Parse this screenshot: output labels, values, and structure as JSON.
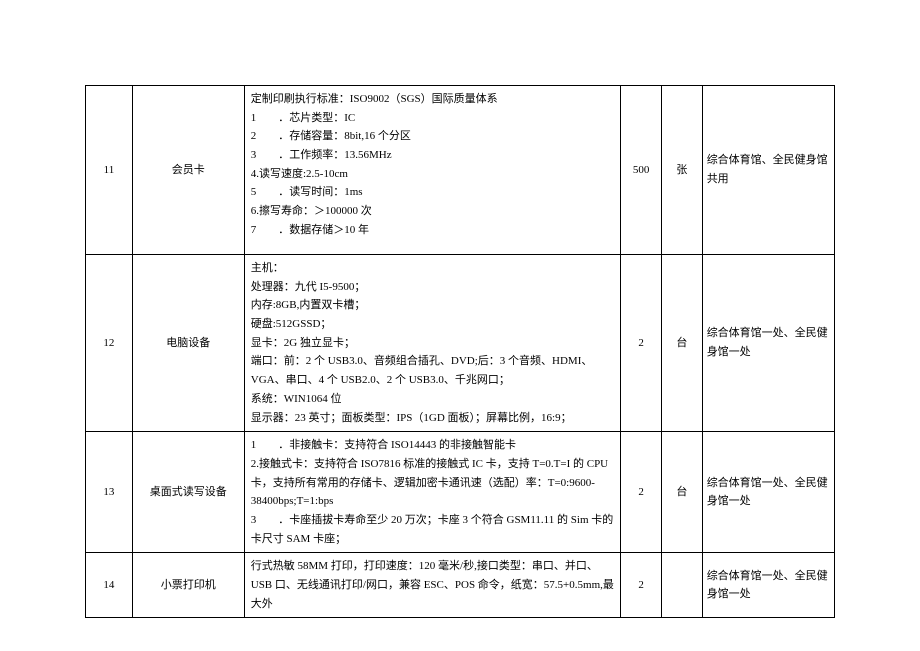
{
  "table": {
    "rows": [
      {
        "idx": "11",
        "name": "会员卡",
        "spec": "定制印刷执行标准：ISO9002（SGS）国际质量体系\n1　　．芯片类型：IC\n2　　．存储容量：8bit,16 个分区\n3　　．工作频率：13.56MHz\n4.读写速度:2.5-10cm\n5　　．读写时间：1ms\n6.擦写寿命：＞100000 次\n7　　．数据存储＞10 年",
        "qty": "500",
        "unit": "张",
        "note": "综合体育馆、全民健身馆共用"
      },
      {
        "idx": "12",
        "name": "电脑设备",
        "spec": "主机：\n处理器：九代 I5-9500；\n内存:8GB,内置双卡槽；\n硬盘:512GSSD；\n显卡：2G 独立显卡；\n端口：前：2 个 USB3.0、音频组合插孔、DVD;后：3 个音频、HDMI、VGA、串口、4 个 USB2.0、2 个 USB3.0、千兆网口；\n系统：WIN1064 位\n显示器：23 英寸；面板类型：IPS（1GD 面板）；屏幕比例，16:9；",
        "qty": "2",
        "unit": "台",
        "note": "综合体育馆一处、全民健身馆一处"
      },
      {
        "idx": "13",
        "name": "桌面式读写设备",
        "spec": "1　　．非接触卡：支持符合 ISO14443 的非接触智能卡\n2.接触式卡：支持符合 ISO7816 标准的接触式 IC 卡，支持 T=0.T=I 的 CPU 卡，支持所有常用的存储卡、逻辑加密卡通讯速（选配）率：T=0:9600-38400bps;T=1:bps\n3　　．卡座插拔卡寿命至少 20 万次；卡座 3 个符合 GSM11.11 的 Sim 卡的卡尺寸 SAM 卡座；",
        "qty": "2",
        "unit": "台",
        "note": "综合体育馆一处、全民健身馆一处"
      },
      {
        "idx": "14",
        "name": "小票打印机",
        "spec": "行式热敏 58MM 打印，打印速度：120 毫米/秒,接口类型：串口、并口、USB 口、无线通讯打印/网口，兼容 ESC、POS 命令，纸宽：57.5+0.5mm,最大外",
        "qty": "2",
        "unit": "",
        "note": "综合体育馆一处、全民健身馆一处"
      }
    ]
  },
  "style": {
    "font_family": "SimSun",
    "font_size_pt": 11,
    "text_color": "#000000",
    "border_color": "#000000",
    "background_color": "#ffffff",
    "line_height": 1.7
  }
}
